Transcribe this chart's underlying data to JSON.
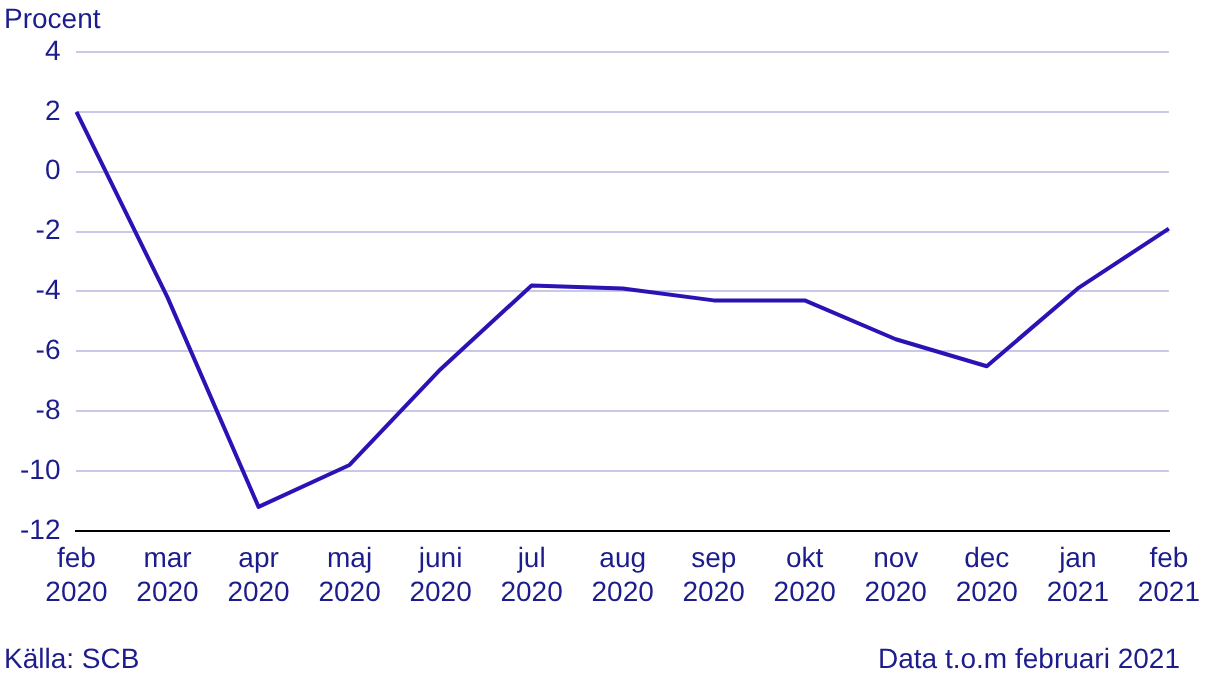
{
  "chart_data": {
    "type": "line",
    "ylabel": "Procent",
    "categories": [
      "feb 2020",
      "mar 2020",
      "apr 2020",
      "maj 2020",
      "juni 2020",
      "jul 2020",
      "aug 2020",
      "sep 2020",
      "okt 2020",
      "nov 2020",
      "dec 2020",
      "jan 2021",
      "feb 2021"
    ],
    "series": [
      {
        "color": "#2a12b4",
        "values": [
          2.0,
          -4.2,
          -11.2,
          -9.8,
          -6.6,
          -3.8,
          -3.9,
          -4.3,
          -4.3,
          -5.6,
          -6.5,
          -3.9,
          -1.9
        ]
      }
    ],
    "ylim": [
      -12,
      4
    ],
    "yticks": [
      -12,
      -10,
      -8,
      -6,
      -4,
      -2,
      0,
      2,
      4
    ],
    "grid": "y",
    "legend": false,
    "marker": "none",
    "line_style": "solid",
    "annotations": [
      "Källa: SCB",
      "Data t.o.m februari 2021"
    ]
  }
}
